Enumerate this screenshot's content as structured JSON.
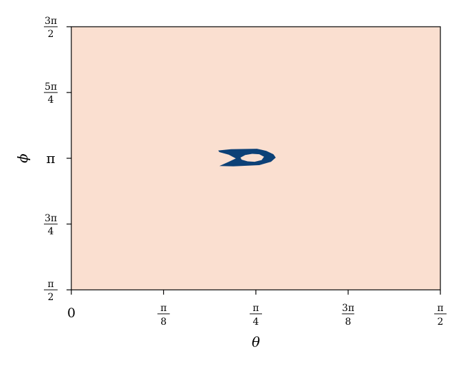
{
  "chart_data": {
    "type": "heatmap",
    "title": "",
    "xlabel": "θ",
    "ylabel": "ϕ",
    "xlim": [
      0,
      1.5708
    ],
    "ylim": [
      1.5708,
      4.7124
    ],
    "x_ticks": [
      {
        "value": 0,
        "kind": "plain",
        "text": "0"
      },
      {
        "value": 0.3927,
        "kind": "frac",
        "num": "π",
        "den": "8"
      },
      {
        "value": 0.7854,
        "kind": "frac",
        "num": "π",
        "den": "4"
      },
      {
        "value": 1.1781,
        "kind": "frac",
        "num": "3π",
        "den": "8"
      },
      {
        "value": 1.5708,
        "kind": "frac",
        "num": "π",
        "den": "2"
      }
    ],
    "y_ticks": [
      {
        "value": 1.5708,
        "kind": "frac",
        "num": "π",
        "den": "2"
      },
      {
        "value": 2.3562,
        "kind": "frac",
        "num": "3π",
        "den": "4"
      },
      {
        "value": 3.1416,
        "kind": "plain",
        "text": "π"
      },
      {
        "value": 3.927,
        "kind": "frac",
        "num": "5π",
        "den": "4"
      },
      {
        "value": 4.7124,
        "kind": "frac",
        "num": "3π",
        "den": "2"
      }
    ],
    "background_color": "#fadfd0",
    "region_color": "#0c4177",
    "grid": false,
    "region": {
      "description_values": "filled region in data units (theta, phi)",
      "outer": [
        [
          0.625,
          3.235
        ],
        [
          0.68,
          3.25
        ],
        [
          0.79,
          3.255
        ],
        [
          0.83,
          3.23
        ],
        [
          0.86,
          3.19
        ],
        [
          0.87,
          3.15
        ],
        [
          0.85,
          3.1
        ],
        [
          0.8,
          3.06
        ],
        [
          0.69,
          3.045
        ],
        [
          0.63,
          3.05
        ],
        [
          0.67,
          3.1
        ],
        [
          0.7,
          3.14
        ],
        [
          0.67,
          3.185
        ],
        [
          0.63,
          3.215
        ]
      ],
      "hole": [
        [
          0.72,
          3.15
        ],
        [
          0.74,
          3.18
        ],
        [
          0.77,
          3.195
        ],
        [
          0.8,
          3.19
        ],
        [
          0.82,
          3.16
        ],
        [
          0.81,
          3.12
        ],
        [
          0.78,
          3.1
        ],
        [
          0.75,
          3.105
        ],
        [
          0.725,
          3.125
        ]
      ]
    }
  }
}
